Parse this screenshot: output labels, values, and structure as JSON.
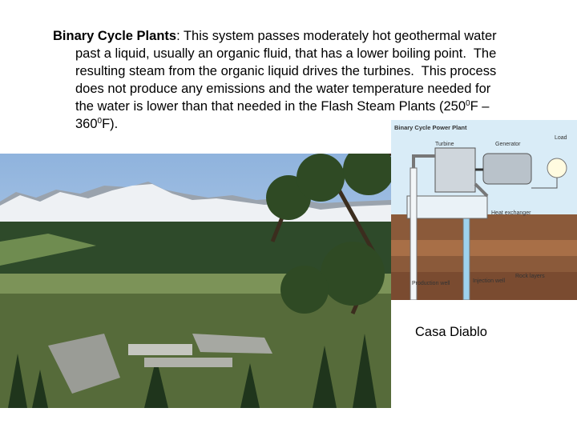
{
  "slide": {
    "paragraph": {
      "lines": [
        [
          "Binary Cycle Plants",
          ": This system passes moderately hot geothermal water"
        ],
        [
          "past a liquid, usually an organic fluid, that has a lower boiling point.  The"
        ],
        [
          "resulting steam from the organic liquid drives the turbines.  This process"
        ],
        [
          "does not produce any emissions and the water temperature needed for"
        ],
        [
          "the water is lower than that needed in the Flash Steam Plants (250",
          "0",
          "F –"
        ],
        [
          "360",
          "0",
          "F)."
        ]
      ]
    },
    "diagram": {
      "title": "Binary Cycle Power Plant",
      "labels": [
        "Turbine",
        "Generator",
        "Load",
        "Heat exchanger",
        "Rock layers",
        "Production well",
        "Injection well"
      ]
    },
    "caption": "Casa Diablo"
  }
}
